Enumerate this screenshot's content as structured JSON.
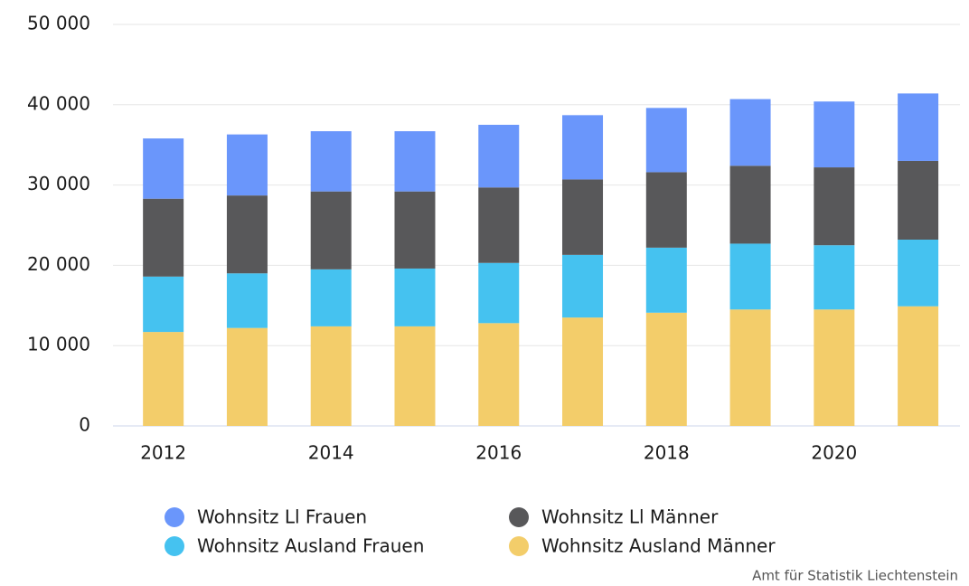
{
  "chart_data": {
    "type": "stacked-bar",
    "x": [
      2012,
      2013,
      2014,
      2015,
      2016,
      2017,
      2018,
      2019,
      2020,
      2021
    ],
    "xlim": [
      2011.4,
      2021.5
    ],
    "xticks": [
      2012,
      2014,
      2016,
      2018,
      2020
    ],
    "ylim": [
      0,
      50000
    ],
    "yticks": [
      0,
      {
        "value": 10000,
        "label": "10 000"
      },
      {
        "value": 20000,
        "label": "20 000"
      },
      {
        "value": 30000,
        "label": "30 000"
      },
      {
        "value": 40000,
        "label": "40 000"
      },
      {
        "value": 50000,
        "label": "50 000"
      }
    ],
    "grid": true,
    "series": [
      {
        "name": "Wohnsitz Ll Frauen",
        "color": "#6a96fb",
        "values": [
          7500,
          7600,
          7500,
          7500,
          7800,
          8000,
          8000,
          8300,
          8200,
          8400
        ]
      },
      {
        "name": "Wohnsitz Ll Männer",
        "color": "#58585a",
        "values": [
          9700,
          9700,
          9700,
          9600,
          9400,
          9400,
          9400,
          9700,
          9700,
          9800
        ]
      },
      {
        "name": "Wohnsitz Ausland Frauen",
        "color": "#45c2f0",
        "values": [
          6900,
          6800,
          7100,
          7200,
          7500,
          7800,
          8100,
          8200,
          8000,
          8300
        ]
      },
      {
        "name": "Wohnsitz Ausland Männer",
        "color": "#f3cd6a",
        "values": [
          11700,
          12200,
          12400,
          12400,
          12800,
          13500,
          14100,
          14500,
          14500,
          14900
        ]
      }
    ],
    "source": "Amt für Statistik Liechtenstein"
  }
}
